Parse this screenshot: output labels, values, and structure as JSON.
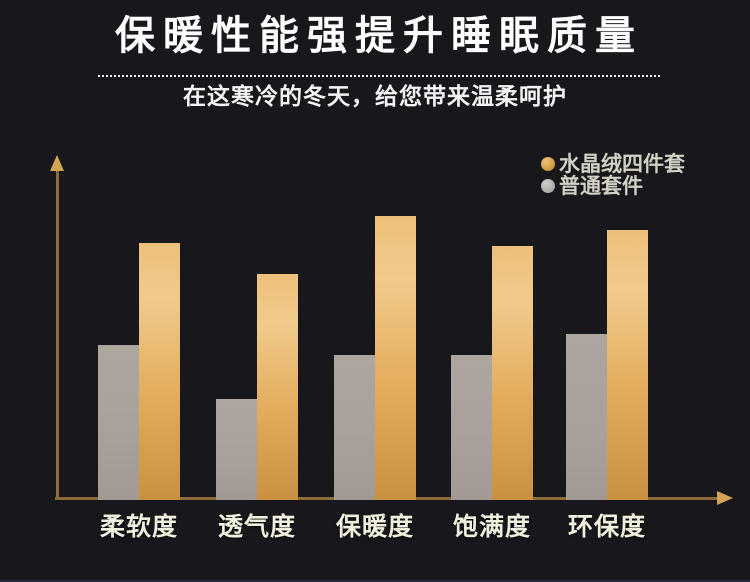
{
  "header": {
    "title": "保暖性能强提升睡眠质量",
    "subtitle": "在这寒冷的冬天，给您带来温柔呵护"
  },
  "legend": {
    "position": "top-right",
    "items": [
      {
        "label": "水晶绒四件套",
        "swatch_color": "#d79f46"
      },
      {
        "label": "普通套件",
        "swatch_color": "#b3b1ae"
      }
    ]
  },
  "chart_data": {
    "type": "bar",
    "categories": [
      "柔软度",
      "透气度",
      "保暖度",
      "饱满度",
      "环保度"
    ],
    "series": [
      {
        "name": "水晶绒四件套",
        "color": "#e2ac5c",
        "values": [
          76,
          67,
          84,
          75,
          80
        ]
      },
      {
        "name": "普通套件",
        "color": "#a8a19a",
        "values": [
          46,
          30,
          43,
          43,
          49
        ]
      }
    ],
    "title": "保暖性能强提升睡眠质量",
    "xlabel": "",
    "ylabel": "",
    "ylim": [
      0,
      100
    ],
    "grid": false,
    "axis_tick_labels_shown": false,
    "value_labels_shown": false,
    "axis_arrows": true,
    "legend_position": "top-right"
  },
  "colors": {
    "background": "#17171c",
    "title_text": "#ffffff",
    "subtitle_text": "#f4f4f4",
    "divider_dots": "#e9e9e9",
    "legend_text": "#d2d0c4",
    "axis": "#8c6c3a",
    "axis_arrow": "#d4a455",
    "bar_gold_top": "#f0ca8b",
    "bar_gold_bottom": "#c9913f",
    "bar_gray": "#a8a19a",
    "category_label_text": "#f0eedd"
  }
}
